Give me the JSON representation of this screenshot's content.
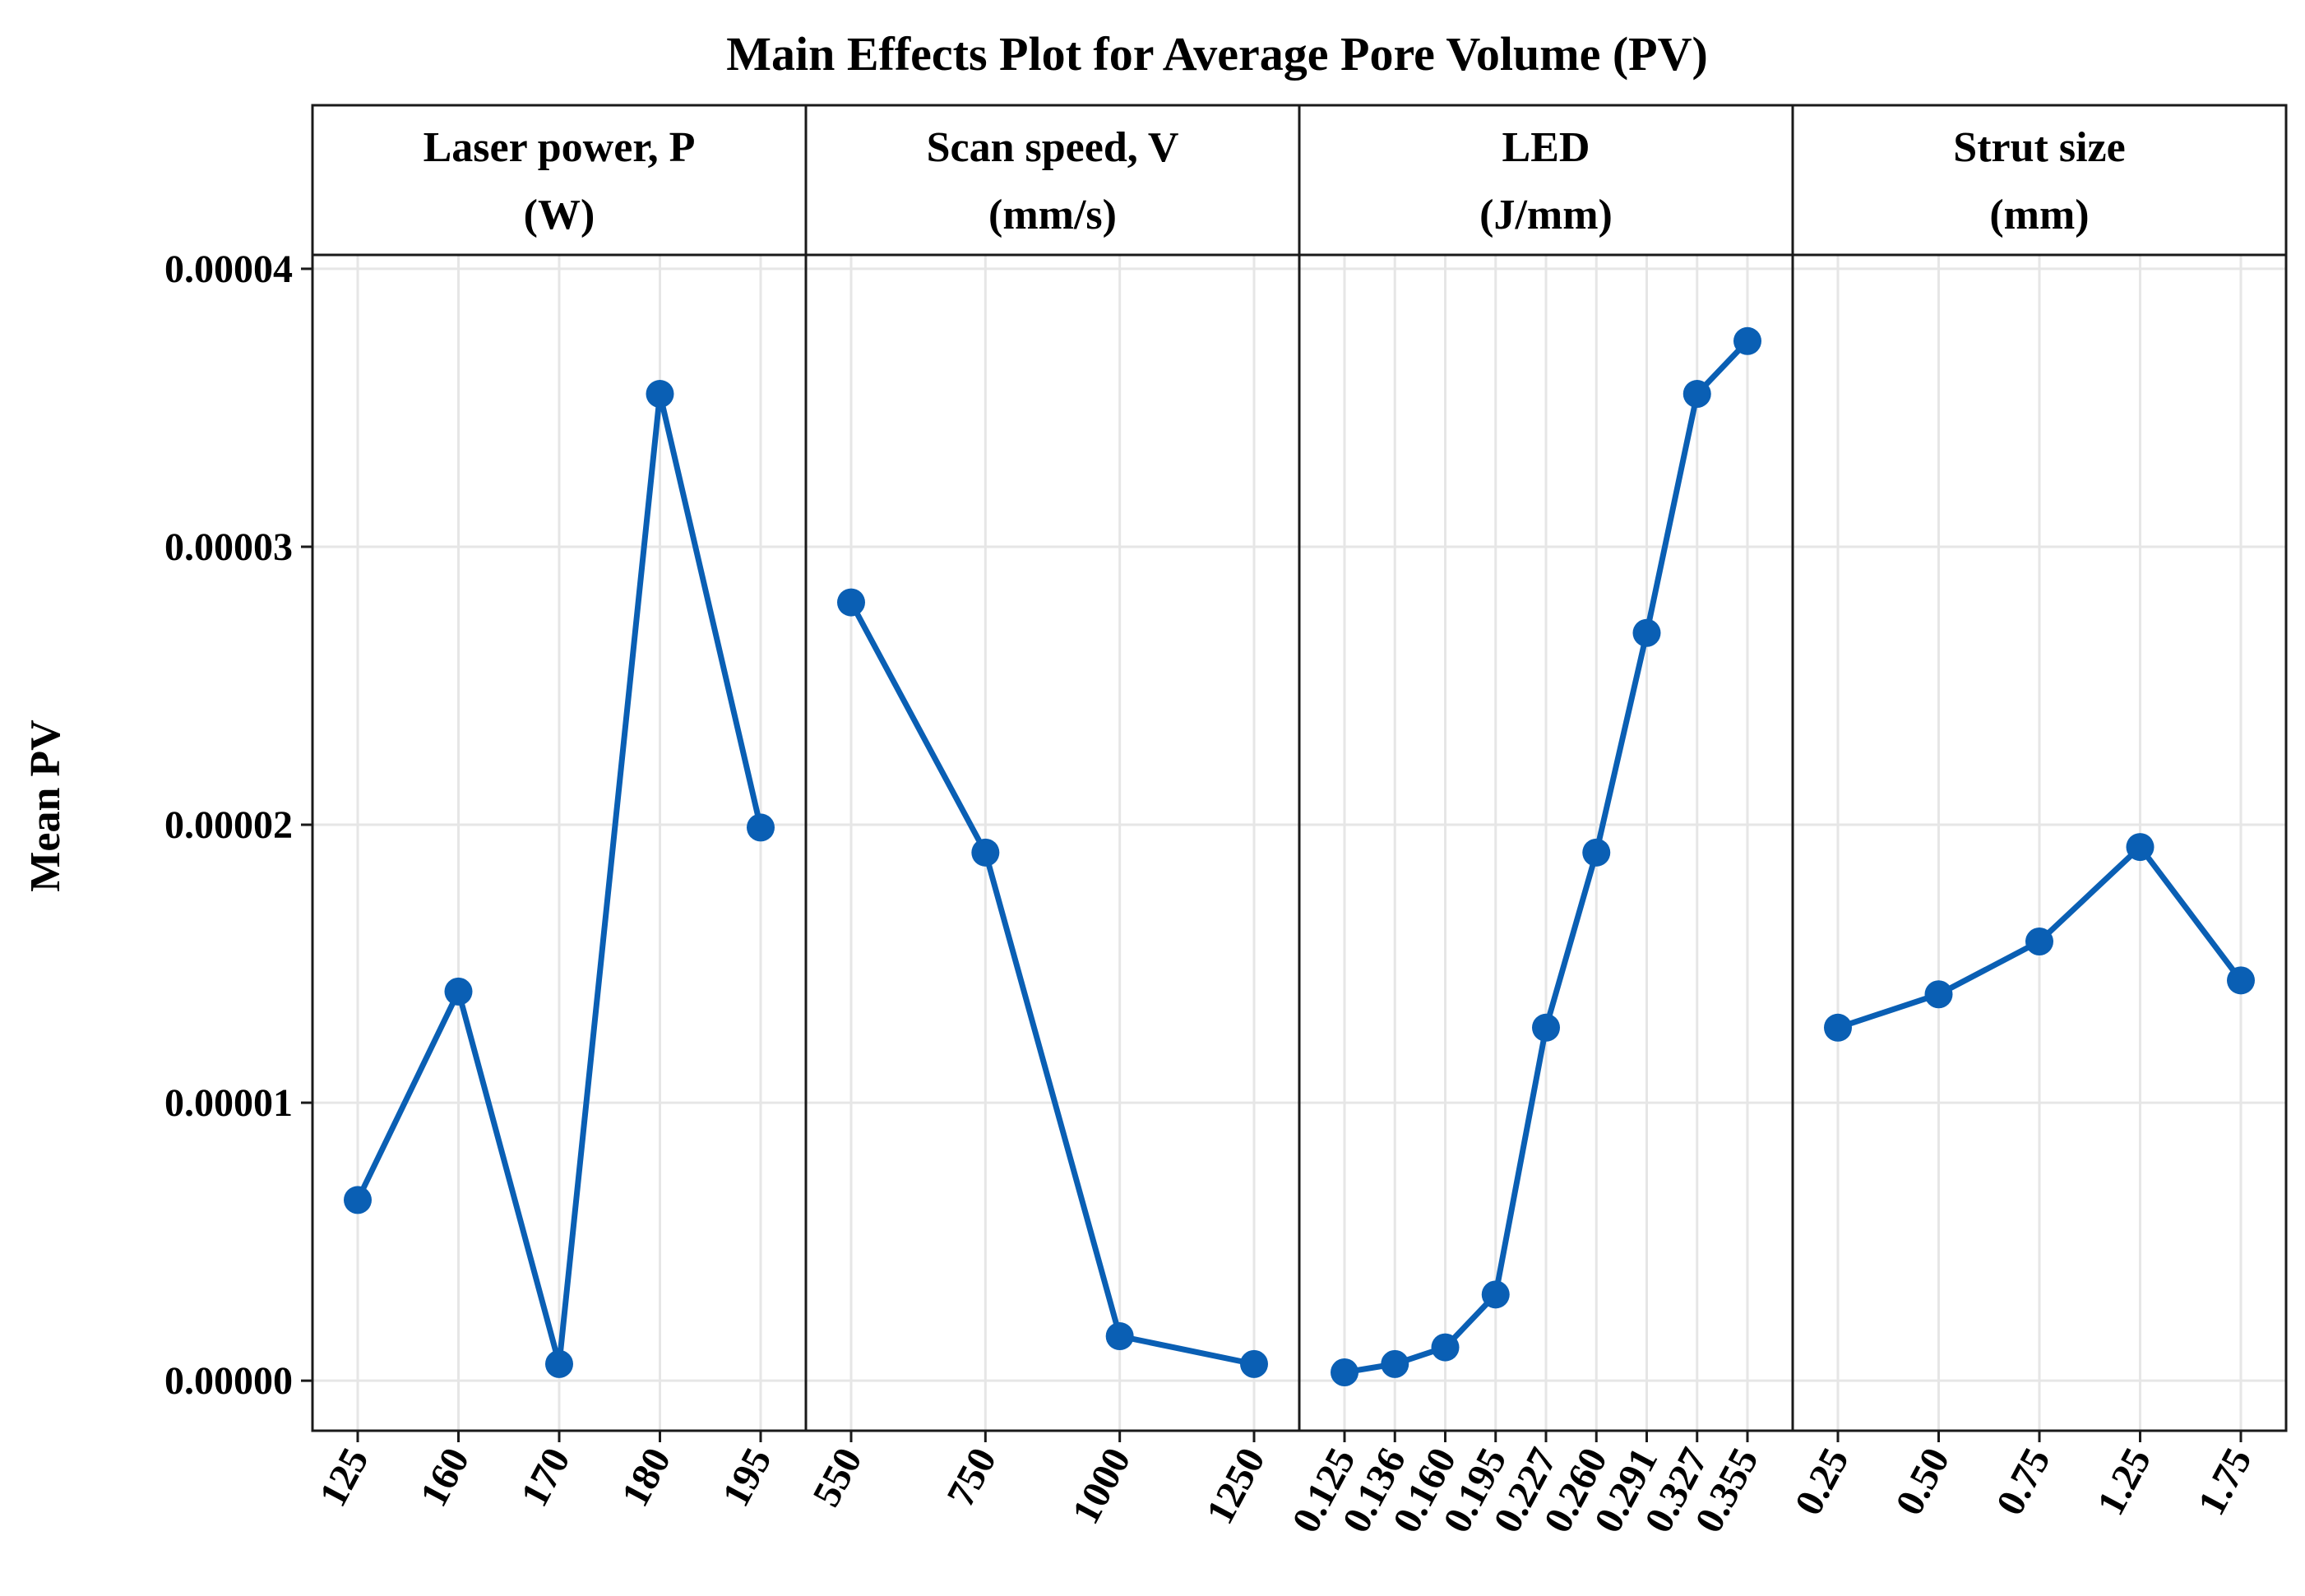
{
  "chart_data": {
    "type": "line",
    "title": "Main Effects Plot for Average Pore Volume (PV)",
    "ylabel": "Mean PV",
    "ylim": [
      -1.8e-06,
      4.05e-05
    ],
    "yticks": [
      0.0,
      1e-05,
      2e-05,
      3e-05,
      4e-05
    ],
    "ytick_labels": [
      "0.00000",
      "0.00001",
      "0.00002",
      "0.00003",
      "0.00004"
    ],
    "color": "#0a5fb4",
    "grid": true,
    "panels": [
      {
        "strip_line1": "Laser power, P",
        "strip_line2": "(W)",
        "categories": [
          "125",
          "160",
          "170",
          "180",
          "195"
        ],
        "values": [
          6.5e-06,
          1.4e-05,
          6e-07,
          3.55e-05,
          1.99e-05
        ]
      },
      {
        "strip_line1": "Scan speed, V",
        "strip_line2": "(mm/s)",
        "categories": [
          "550",
          "750",
          "1000",
          "1250"
        ],
        "values": [
          2.8e-05,
          1.9e-05,
          1.6e-06,
          6e-07
        ]
      },
      {
        "strip_line1": "LED",
        "strip_line2": "(J/mm)",
        "categories": [
          "0.125",
          "0.136",
          "0.160",
          "0.195",
          "0.227",
          "0.260",
          "0.291",
          "0.327",
          "0.355"
        ],
        "values": [
          3e-07,
          6e-07,
          1.2e-06,
          3.1e-06,
          1.27e-05,
          1.9e-05,
          2.69e-05,
          3.55e-05,
          3.74e-05
        ]
      },
      {
        "strip_line1": "Strut size",
        "strip_line2": "(mm)",
        "categories": [
          "0.25",
          "0.50",
          "0.75",
          "1.25",
          "1.75"
        ],
        "values": [
          1.27e-05,
          1.39e-05,
          1.58e-05,
          1.92e-05,
          1.44e-05
        ]
      }
    ]
  }
}
